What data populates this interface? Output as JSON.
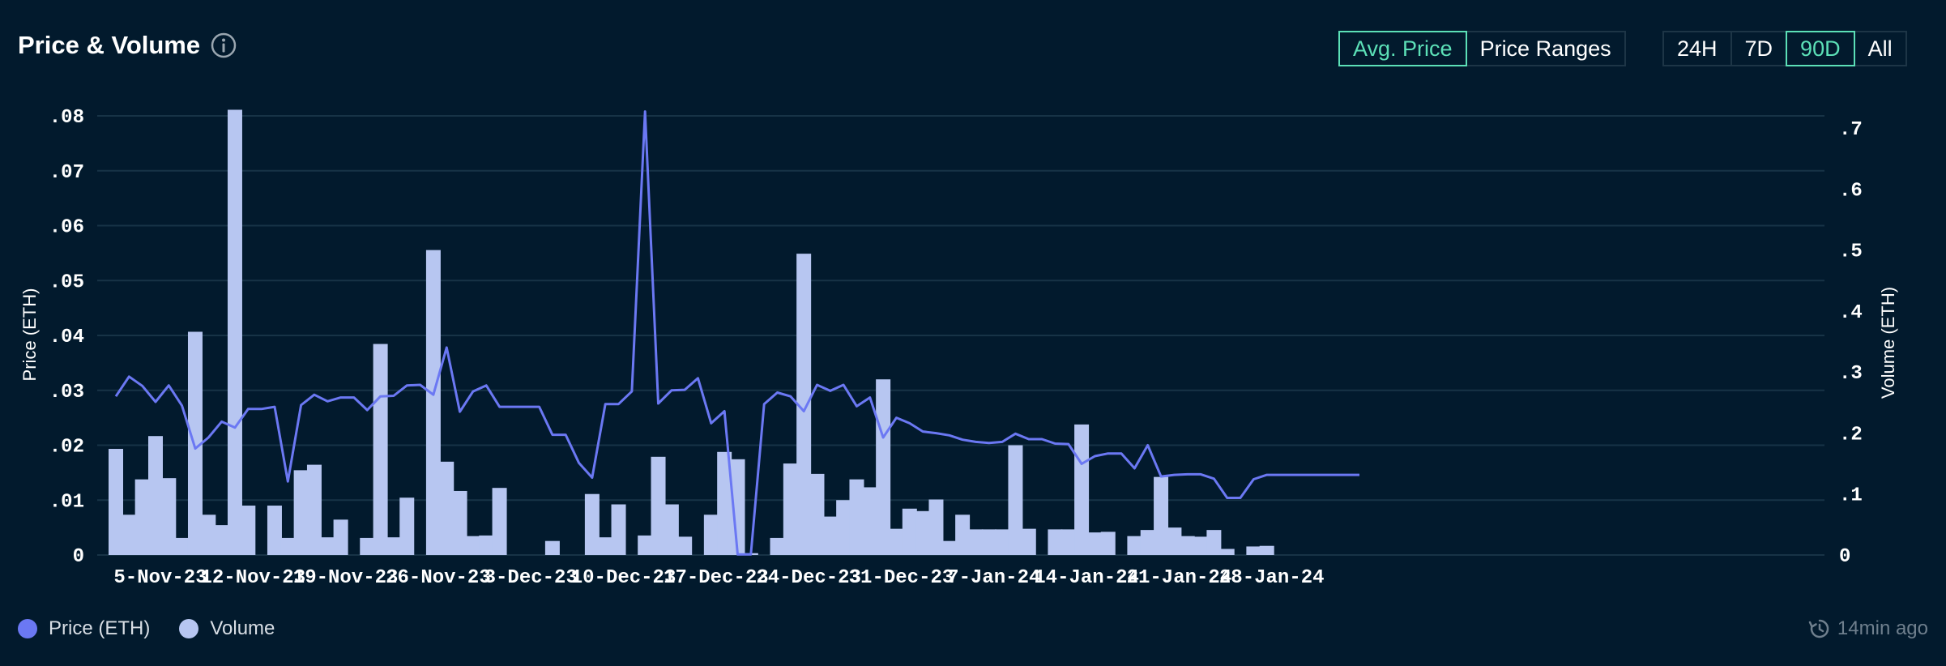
{
  "header": {
    "title": "Price & Volume"
  },
  "toggles": {
    "mode": [
      {
        "label": "Avg. Price",
        "active": true
      },
      {
        "label": "Price Ranges",
        "active": false
      }
    ],
    "range": [
      {
        "label": "24H",
        "active": false
      },
      {
        "label": "7D",
        "active": false
      },
      {
        "label": "90D",
        "active": true
      },
      {
        "label": "All",
        "active": false
      }
    ]
  },
  "legend": {
    "price": "Price (ETH)",
    "volume": "Volume"
  },
  "status": {
    "updated": "14min ago"
  },
  "colors": {
    "background": "#021a2d",
    "price_line": "#6b78f3",
    "volume_bar": "#b7c6f1",
    "accent": "#5ce0b7",
    "grid": "#173346"
  },
  "chart_data": {
    "type": "bar",
    "title": "",
    "xlabel": "",
    "ylabel": "Price (ETH)",
    "y2label": "Volume (ETH)",
    "ylim": [
      0,
      0.08
    ],
    "y2lim": [
      0,
      0.72
    ],
    "y_ticks": [
      ".08",
      ".07",
      ".06",
      ".05",
      ".04",
      ".03",
      ".02",
      ".01",
      "0"
    ],
    "y2_ticks": [
      ".7",
      ".6",
      ".5",
      ".4",
      ".3",
      ".2",
      ".1",
      "0"
    ],
    "x_ticks": [
      {
        "label": "5-Nov-23",
        "day": 0
      },
      {
        "label": "12-Nov-23",
        "day": 7
      },
      {
        "label": "19-Nov-23",
        "day": 14
      },
      {
        "label": "26-Nov-23",
        "day": 21
      },
      {
        "label": "3-Dec-23",
        "day": 28
      },
      {
        "label": "10-Dec-23",
        "day": 35
      },
      {
        "label": "17-Dec-23",
        "day": 42
      },
      {
        "label": "24-Dec-23",
        "day": 49
      },
      {
        "label": "31-Dec-23",
        "day": 56
      },
      {
        "label": "7-Jan-24",
        "day": 63
      },
      {
        "label": "14-Jan-24",
        "day": 70
      },
      {
        "label": "21-Jan-24",
        "day": 77
      },
      {
        "label": "28-Jan-24",
        "day": 84
      }
    ],
    "series": [
      {
        "name": "Price (ETH)",
        "type": "line",
        "axis": "left",
        "start_day": 0,
        "values": [
          0.0289,
          0.0325,
          0.0308,
          0.0279,
          0.0309,
          0.0272,
          0.0194,
          0.0214,
          0.0243,
          0.0232,
          0.0266,
          0.0266,
          0.027,
          0.0134,
          0.0273,
          0.0292,
          0.028,
          0.0287,
          0.0287,
          0.0264,
          0.0289,
          0.029,
          0.0309,
          0.031,
          0.0292,
          0.0378,
          0.0261,
          0.0298,
          0.0309,
          0.027,
          0.027,
          0.027,
          0.027,
          0.0219,
          0.0219,
          0.0168,
          0.0141,
          0.0275,
          0.0275,
          0.0298,
          0.0808,
          0.0276,
          0.03,
          0.0301,
          0.0322,
          0.024,
          0.0262,
          0.0001,
          0.0001,
          0.0275,
          0.0296,
          0.0289,
          0.0262,
          0.031,
          0.0299,
          0.031,
          0.0271,
          0.0287,
          0.0214,
          0.025,
          0.024,
          0.0225,
          0.0222,
          0.0218,
          0.021,
          0.0206,
          0.0204,
          0.0206,
          0.0221,
          0.0211,
          0.0211,
          0.0203,
          0.0202,
          0.0166,
          0.018,
          0.0185,
          0.0185,
          0.0158,
          0.02,
          0.0143,
          0.0146,
          0.0147,
          0.0147,
          0.0139,
          0.0104,
          0.0104,
          0.0138,
          0.0146,
          0.0146,
          0.0146,
          0.0146,
          0.0146,
          0.0146,
          0.0146,
          0.0146
        ]
      },
      {
        "name": "Volume",
        "type": "bar",
        "axis": "right",
        "start_day": 0,
        "values": [
          0.174,
          0.066,
          0.124,
          0.195,
          0.126,
          0.028,
          0.366,
          0.066,
          0.049,
          0.73,
          0.081,
          0,
          0.081,
          0.028,
          0.139,
          0.148,
          0.029,
          0.058,
          0,
          0.028,
          0.346,
          0.029,
          0.094,
          0,
          0.5,
          0.153,
          0.105,
          0.031,
          0.032,
          0.11,
          0,
          0,
          0,
          0.023,
          0,
          0,
          0.1,
          0.029,
          0.083,
          0,
          0.032,
          0.161,
          0.083,
          0.03,
          0,
          0.066,
          0.169,
          0.157,
          0.003,
          0,
          0.028,
          0.15,
          0.494,
          0.133,
          0.063,
          0.09,
          0.124,
          0.111,
          0.288,
          0.043,
          0.076,
          0.072,
          0.091,
          0.023,
          0.066,
          0.042,
          0.042,
          0.042,
          0.18,
          0.043,
          0,
          0.042,
          0.042,
          0.214,
          0.037,
          0.038,
          0,
          0.031,
          0.041,
          0.128,
          0.045,
          0.031,
          0.03,
          0.041,
          0.01,
          0,
          0.014,
          0.015,
          0,
          0,
          0,
          0,
          0,
          0
        ]
      }
    ],
    "grid": true,
    "legend": "bottom-left"
  }
}
